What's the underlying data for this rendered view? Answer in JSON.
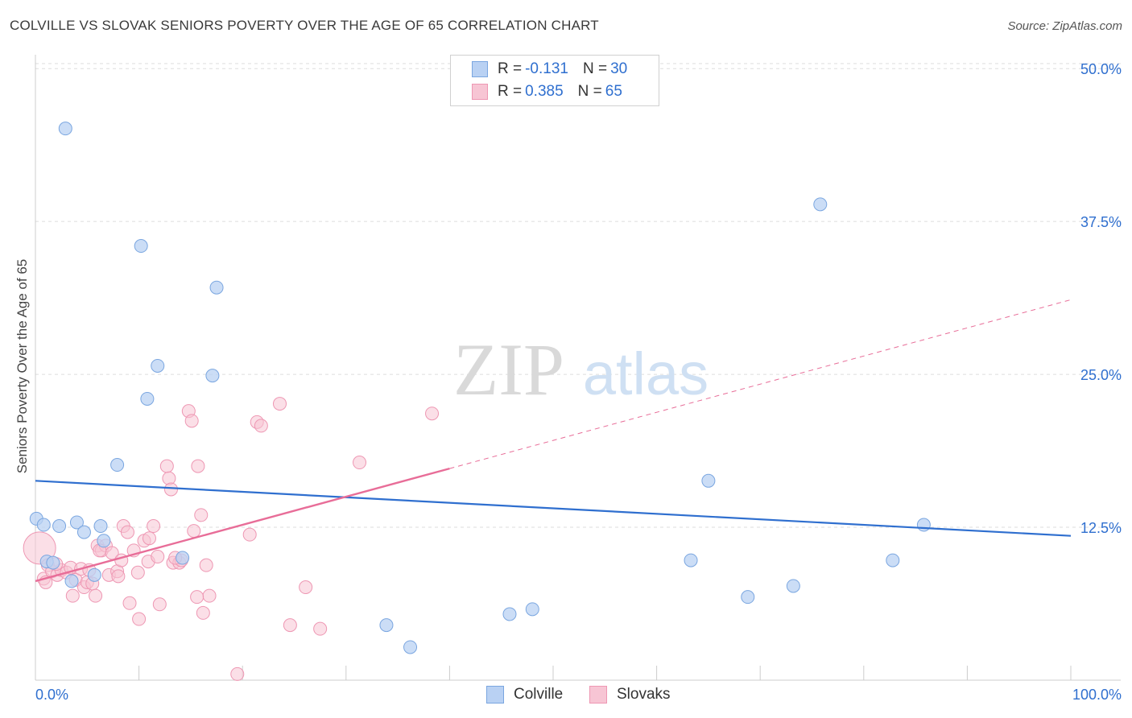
{
  "header": {
    "title": "COLVILLE VS SLOVAK SENIORS POVERTY OVER THE AGE OF 65 CORRELATION CHART",
    "source": "Source: ZipAtlas.com"
  },
  "watermark": {
    "zip": "ZIP",
    "atlas": "atlas"
  },
  "legend": {
    "colville": {
      "r_label": "R =",
      "r_value": "-0.131",
      "n_label": "N =",
      "n_value": "30"
    },
    "slovaks": {
      "r_label": "R =",
      "r_value": "0.385",
      "n_label": "N =",
      "n_value": "65"
    }
  },
  "bottom_legend": {
    "colville": "Colville",
    "slovaks": "Slovaks"
  },
  "colors": {
    "colville_fill": "#b9d1f3",
    "colville_stroke": "#7aa6e0",
    "colville_line": "#2f6fcf",
    "slovaks_fill": "#f7c5d4",
    "slovaks_stroke": "#ee97b3",
    "slovaks_line": "#e86d98",
    "axis_text": "#2f6fcf",
    "grid": "#dddddd"
  },
  "chart_data": {
    "type": "scatter",
    "title": "COLVILLE VS SLOVAK SENIORS POVERTY OVER THE AGE OF 65 CORRELATION CHART",
    "xlabel": "",
    "ylabel": "Seniors Poverty Over the Age of 65",
    "xlim": [
      0,
      100
    ],
    "ylim": [
      0,
      51
    ],
    "x_tick_labels": [
      "0.0%",
      "100.0%"
    ],
    "y_ticks": [
      12.5,
      25.0,
      37.5,
      50.0
    ],
    "y_tick_labels": [
      "12.5%",
      "25.0%",
      "37.5%",
      "50.0%"
    ],
    "grid": "horizontal dashed",
    "legend_placement": "top-center",
    "series": [
      {
        "name": "Colville",
        "points": [
          [
            2.9,
            45.1
          ],
          [
            10.2,
            35.5
          ],
          [
            17.5,
            32.1
          ],
          [
            11.8,
            25.7
          ],
          [
            17.1,
            24.9
          ],
          [
            10.8,
            23.0
          ],
          [
            7.9,
            17.6
          ],
          [
            75.8,
            38.9
          ],
          [
            65.0,
            16.3
          ],
          [
            85.8,
            12.7
          ],
          [
            0.1,
            13.2
          ],
          [
            0.8,
            12.7
          ],
          [
            2.3,
            12.6
          ],
          [
            4.0,
            12.9
          ],
          [
            6.3,
            12.6
          ],
          [
            4.7,
            12.1
          ],
          [
            6.6,
            11.4
          ],
          [
            1.1,
            9.7
          ],
          [
            1.7,
            9.6
          ],
          [
            14.2,
            10.0
          ],
          [
            3.5,
            8.1
          ],
          [
            5.7,
            8.6
          ],
          [
            63.3,
            9.8
          ],
          [
            82.8,
            9.8
          ],
          [
            73.2,
            7.7
          ],
          [
            68.8,
            6.8
          ],
          [
            48.0,
            5.8
          ],
          [
            45.8,
            5.4
          ],
          [
            33.9,
            4.5
          ],
          [
            36.2,
            2.7
          ]
        ],
        "trend": {
          "x": [
            0,
            100
          ],
          "y": [
            16.3,
            11.8
          ]
        }
      },
      {
        "name": "Slovaks",
        "points": [
          [
            0.4,
            10.8
          ],
          [
            0.8,
            8.3
          ],
          [
            1.2,
            9.4
          ],
          [
            1.6,
            8.9
          ],
          [
            2.1,
            8.6
          ],
          [
            2.5,
            9.0
          ],
          [
            3.0,
            8.8
          ],
          [
            3.4,
            9.2
          ],
          [
            3.6,
            6.9
          ],
          [
            3.9,
            8.2
          ],
          [
            4.4,
            9.1
          ],
          [
            4.7,
            7.6
          ],
          [
            5.0,
            8.0
          ],
          [
            5.5,
            7.9
          ],
          [
            5.8,
            6.9
          ],
          [
            6.0,
            11.0
          ],
          [
            6.4,
            10.6
          ],
          [
            6.8,
            11.0
          ],
          [
            7.1,
            8.6
          ],
          [
            7.4,
            10.4
          ],
          [
            7.9,
            8.9
          ],
          [
            8.3,
            9.8
          ],
          [
            8.5,
            12.6
          ],
          [
            8.9,
            12.1
          ],
          [
            9.1,
            6.3
          ],
          [
            9.5,
            10.6
          ],
          [
            9.9,
            8.8
          ],
          [
            10.0,
            5.0
          ],
          [
            10.5,
            11.4
          ],
          [
            10.9,
            9.7
          ],
          [
            11.4,
            12.6
          ],
          [
            11.8,
            10.1
          ],
          [
            12.0,
            6.2
          ],
          [
            12.7,
            17.5
          ],
          [
            12.9,
            16.5
          ],
          [
            13.1,
            15.6
          ],
          [
            13.3,
            9.6
          ],
          [
            13.9,
            9.6
          ],
          [
            14.1,
            9.8
          ],
          [
            14.8,
            22.0
          ],
          [
            15.1,
            21.2
          ],
          [
            15.3,
            12.2
          ],
          [
            15.7,
            17.5
          ],
          [
            16.0,
            13.5
          ],
          [
            16.2,
            5.5
          ],
          [
            16.5,
            9.4
          ],
          [
            16.8,
            6.9
          ],
          [
            15.6,
            6.8
          ],
          [
            19.5,
            0.5
          ],
          [
            20.7,
            11.9
          ],
          [
            21.4,
            21.1
          ],
          [
            21.8,
            20.8
          ],
          [
            23.6,
            22.6
          ],
          [
            24.6,
            4.5
          ],
          [
            26.1,
            7.6
          ],
          [
            27.5,
            4.2
          ],
          [
            31.3,
            17.8
          ],
          [
            38.3,
            21.8
          ],
          [
            1.0,
            8.0
          ],
          [
            2.0,
            9.5
          ],
          [
            5.2,
            9.0
          ],
          [
            8.0,
            8.5
          ],
          [
            11.0,
            11.6
          ],
          [
            13.5,
            10.0
          ],
          [
            6.2,
            10.6
          ]
        ],
        "trend_solid": {
          "x": [
            0,
            40
          ],
          "y": [
            8.1,
            17.3
          ]
        },
        "trend_dashed": {
          "x": [
            40,
            100
          ],
          "y": [
            17.3,
            31.1
          ]
        }
      }
    ]
  }
}
